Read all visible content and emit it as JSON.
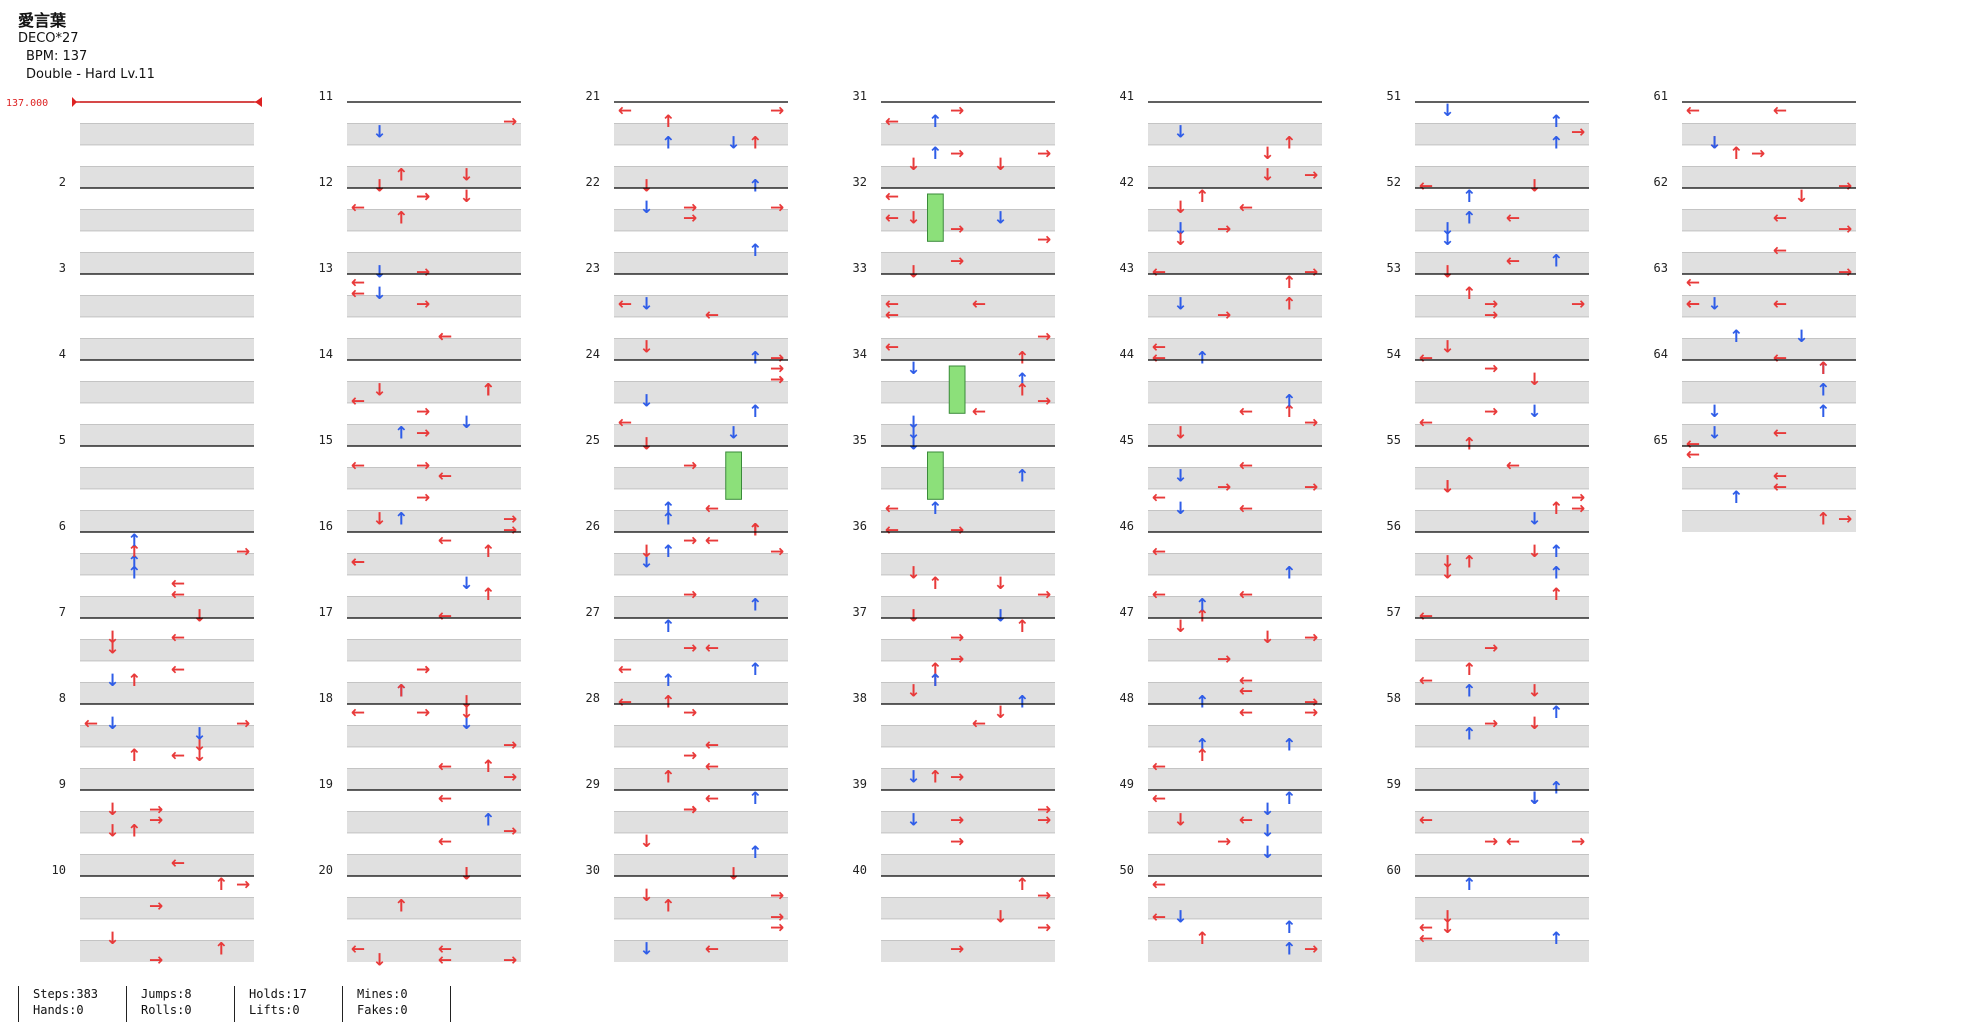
{
  "header": {
    "title": "愛言葉",
    "artist": "DECO*27",
    "bpm_text": "BPM: 137",
    "difficulty_text": "Double - Hard  Lv.11"
  },
  "bpm_marker": {
    "label": "137.000",
    "color": "#dd2222"
  },
  "colors": {
    "left_right_arrow_red": "#e83a3a",
    "blue_arrow": "#2f5de8",
    "hold_green": "#8ce07a",
    "row_shade": "#e0e0e0",
    "measure_line": "#000000"
  },
  "chart_data": {
    "type": "step-chart",
    "mode": "Double",
    "lanes_per_measure": 8,
    "total_measures": 65,
    "measures_per_column": 10,
    "measure_numbers": [
      2,
      3,
      4,
      5,
      6,
      7,
      8,
      9,
      10,
      11,
      12,
      13,
      14,
      15,
      16,
      17,
      18,
      19,
      20,
      21,
      22,
      23,
      24,
      25,
      26,
      27,
      28,
      29,
      30,
      31,
      32,
      33,
      34,
      35,
      36,
      37,
      38,
      39,
      40,
      41,
      42,
      43,
      44,
      45,
      46,
      47,
      48,
      49,
      50,
      51,
      52,
      53,
      54,
      55,
      56,
      57,
      58,
      59,
      60,
      61,
      62,
      63,
      64,
      65
    ],
    "arrow_glyphs": [
      "←",
      "↓",
      "↑",
      "→"
    ],
    "arrow_palette": [
      "#e83a3a",
      "#2f5de8"
    ]
  },
  "stats": [
    {
      "top": "Steps:383",
      "bottom": "Hands:0"
    },
    {
      "top": "Jumps:8",
      "bottom": "Rolls:0"
    },
    {
      "top": "Holds:17",
      "bottom": "Lifts:0"
    },
    {
      "top": "Mines:0",
      "bottom": "Fakes:0"
    }
  ]
}
